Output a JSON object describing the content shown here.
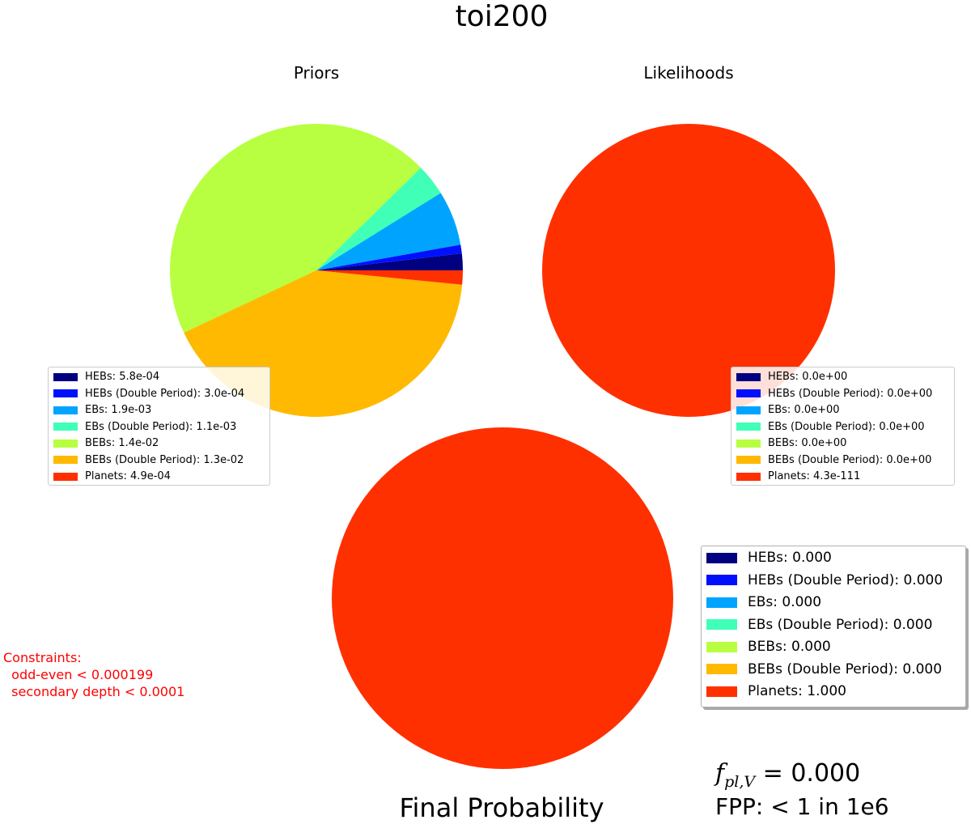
{
  "title": "toi200",
  "constraints": {
    "heading": "Constraints:",
    "lines": [
      "odd-even < 0.000199",
      "secondary depth < 0.0001"
    ]
  },
  "fpl": {
    "symbol": "f",
    "subscript": "pl,V",
    "value": "= 0.000"
  },
  "fpp": "FPP: < 1 in 1e6",
  "chart_data": [
    {
      "type": "pie",
      "title": "Priors",
      "categories": [
        "HEBs",
        "HEBs (Double Period)",
        "EBs",
        "EBs (Double Period)",
        "BEBs",
        "BEBs (Double Period)",
        "Planets"
      ],
      "values": [
        0.00058,
        0.0003,
        0.0019,
        0.0011,
        0.014,
        0.013,
        0.00049
      ],
      "colors": [
        "#000080",
        "#0010ff",
        "#00a4ff",
        "#40ffb7",
        "#b7ff40",
        "#ffb900",
        "#ff3000"
      ],
      "legend": [
        "HEBs: 5.8e-04",
        "HEBs (Double Period): 3.0e-04",
        "EBs: 1.9e-03",
        "EBs (Double Period): 1.1e-03",
        "BEBs: 1.4e-02",
        "BEBs (Double Period): 1.3e-02",
        "Planets: 4.9e-04"
      ],
      "legend_loc": "lower-left"
    },
    {
      "type": "pie",
      "title": "Likelihoods",
      "categories": [
        "HEBs",
        "HEBs (Double Period)",
        "EBs",
        "EBs (Double Period)",
        "BEBs",
        "BEBs (Double Period)",
        "Planets"
      ],
      "values": [
        0,
        0,
        0,
        0,
        0,
        0,
        1
      ],
      "colors": [
        "#000080",
        "#0010ff",
        "#00a4ff",
        "#40ffb7",
        "#b7ff40",
        "#ffb900",
        "#ff3000"
      ],
      "legend": [
        "HEBs: 0.0e+00",
        "HEBs (Double Period): 0.0e+00",
        "EBs: 0.0e+00",
        "EBs (Double Period): 0.0e+00",
        "BEBs: 0.0e+00",
        "BEBs (Double Period): 0.0e+00",
        "Planets: 4.3e-111"
      ],
      "legend_loc": "lower-right"
    },
    {
      "type": "pie",
      "title": "Final Probability",
      "categories": [
        "HEBs",
        "HEBs (Double Period)",
        "EBs",
        "EBs (Double Period)",
        "BEBs",
        "BEBs (Double Period)",
        "Planets"
      ],
      "values": [
        0,
        0,
        0,
        0,
        0,
        0,
        1
      ],
      "colors": [
        "#000080",
        "#0010ff",
        "#00a4ff",
        "#40ffb7",
        "#b7ff40",
        "#ffb900",
        "#ff3000"
      ],
      "legend": [
        "HEBs: 0.000",
        "HEBs (Double Period): 0.000",
        "EBs: 0.000",
        "EBs (Double Period): 0.000",
        "BEBs: 0.000",
        "BEBs (Double Period): 0.000",
        "Planets: 1.000"
      ],
      "legend_loc": "right"
    }
  ]
}
